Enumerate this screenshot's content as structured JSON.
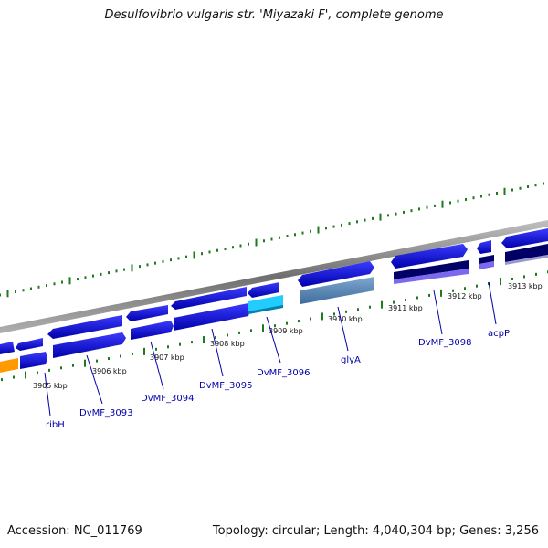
{
  "title": "Desulfovibrio vulgaris str. 'Miyazaki F', complete genome",
  "footer": {
    "accession": "Accession: NC_011769",
    "summary": "Topology: circular; Length: 4,040,304 bp; Genes: 3,256"
  },
  "scale": {
    "ticks": [
      {
        "label": "3905 kbp",
        "pos": 3905
      },
      {
        "label": "3906 kbp",
        "pos": 3906
      },
      {
        "label": "3907 kbp",
        "pos": 3907
      },
      {
        "label": "3908 kbp",
        "pos": 3908
      },
      {
        "label": "3909 kbp",
        "pos": 3909
      },
      {
        "label": "3910 kbp",
        "pos": 3910
      },
      {
        "label": "3911 kbp",
        "pos": 3911
      },
      {
        "label": "3912 kbp",
        "pos": 3912
      },
      {
        "label": "3913 kbp",
        "pos": 3913
      }
    ]
  },
  "genes": [
    {
      "label": "ribH",
      "color": "#0000cc"
    },
    {
      "label": "DvMF_3093",
      "color": "#0000cc"
    },
    {
      "label": "DvMF_3094",
      "color": "#0000cc"
    },
    {
      "label": "DvMF_3095",
      "color": "#0000cc"
    },
    {
      "label": "DvMF_3096",
      "color": "#0000cc"
    },
    {
      "label": "glyA",
      "color": "#4f7fb0"
    },
    {
      "label": "DvMF_3098",
      "color": "#0000cc"
    },
    {
      "label": "acpP",
      "color": "#0000cc"
    }
  ],
  "colors": {
    "cds": "#0000cc",
    "cds_light": "#3333ff",
    "orange": "#ff9900",
    "cyan": "#22ccff",
    "steel": "#4f7fb0",
    "navy": "#000066",
    "lavender": "#7b68ee",
    "tick_green": "#1f7a1f",
    "backbone": "#888888",
    "label_blue": "#0000aa"
  }
}
